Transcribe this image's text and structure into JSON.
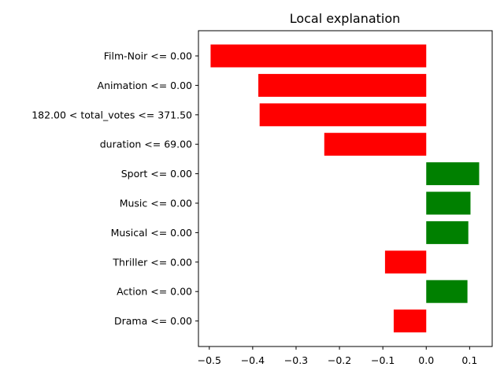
{
  "chart_data": {
    "type": "bar",
    "orientation": "horizontal",
    "title": "Local explanation",
    "xlabel": "",
    "ylabel": "",
    "categories": [
      "Film-Noir <= 0.00",
      "Animation <= 0.00",
      "182.00 < total_votes <= 371.50",
      "duration <= 69.00",
      "Sport <= 0.00",
      "Music <= 0.00",
      "Musical <= 0.00",
      "Thriller <= 0.00",
      "Action <= 0.00",
      "Drama <= 0.00"
    ],
    "values": [
      -0.497,
      -0.387,
      -0.384,
      -0.235,
      0.122,
      0.102,
      0.097,
      -0.095,
      0.095,
      -0.075
    ],
    "xlim": [
      -0.525,
      0.152
    ],
    "xticks": [
      -0.5,
      -0.4,
      -0.3,
      -0.2,
      -0.1,
      0.0,
      0.1
    ],
    "xtick_labels": [
      "−0.5",
      "−0.4",
      "−0.3",
      "−0.2",
      "−0.1",
      "0.0",
      "0.1"
    ],
    "grid": false,
    "colors": {
      "positive": "#008000",
      "negative": "#ff0000"
    }
  }
}
